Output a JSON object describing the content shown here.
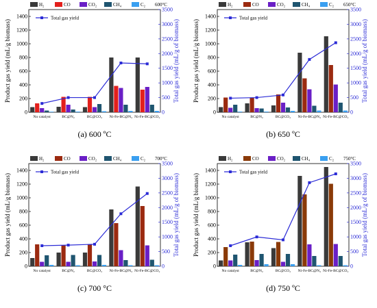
{
  "chart_data": [
    {
      "type": "bar",
      "title": "",
      "temperature_label": "600°C",
      "caption": "(a) 600 ºC",
      "categories": [
        "No catalyst",
        "BC@N₂",
        "BC@CO₂",
        "Ni-Fe-BC@N₂",
        "Ni-Fe-BC@CO₂"
      ],
      "ylabel": "Product gas yield (mL/g biomass)",
      "ylabel_right": "Total gas yield (mL/g of biomass)",
      "ylim": [
        0,
        1500
      ],
      "yticks": [
        0,
        200,
        400,
        600,
        800,
        1000,
        1200,
        1400
      ],
      "ylim_right": [
        0,
        3500
      ],
      "yticks_right": [
        0,
        500,
        1000,
        1500,
        2000,
        2500,
        3000,
        3500
      ],
      "series": [
        {
          "name": "H₂",
          "color": "#3a3a3a",
          "values": [
            75,
            80,
            75,
            800,
            800
          ]
        },
        {
          "name": "CO",
          "color": "#e3201c",
          "values": [
            130,
            225,
            225,
            385,
            330
          ]
        },
        {
          "name": "CO₂",
          "color": "#6a1fc6",
          "values": [
            60,
            110,
            75,
            355,
            370
          ]
        },
        {
          "name": "CH₄",
          "color": "#1f5570",
          "values": [
            25,
            40,
            120,
            110,
            110
          ]
        },
        {
          "name": "C₂",
          "color": "#3a9ff0",
          "values": [
            8,
            10,
            15,
            20,
            20
          ]
        }
      ],
      "line": {
        "name": "Total gas yield",
        "color": "#2b2bd6",
        "values": [
          300,
          500,
          500,
          1680,
          1650
        ]
      }
    },
    {
      "type": "bar",
      "title": "",
      "temperature_label": "650°C",
      "caption": "(b) 650 ºC",
      "categories": [
        "No catalyst",
        "BC@N₂",
        "BC@CO₂",
        "Ni-Fe-BC@N₂",
        "Ni-Fe-BC@CO₂"
      ],
      "ylabel": "Product gas yield (mL/g biomass)",
      "ylabel_right": "Total gas yield (mL/g of biomass)",
      "ylim": [
        0,
        1500
      ],
      "yticks": [
        0,
        200,
        400,
        600,
        800,
        1000,
        1200,
        1400
      ],
      "ylim_right": [
        0,
        3500
      ],
      "yticks_right": [
        0,
        500,
        1000,
        1500,
        2000,
        2500,
        3000,
        3500
      ],
      "series": [
        {
          "name": "H₂",
          "color": "#3a3a3a",
          "values": [
            75,
            130,
            100,
            870,
            1110
          ]
        },
        {
          "name": "CO",
          "color": "#9b2a10",
          "values": [
            215,
            215,
            260,
            495,
            690
          ]
        },
        {
          "name": "CO₂",
          "color": "#6a1fc6",
          "values": [
            65,
            60,
            140,
            335,
            405
          ]
        },
        {
          "name": "CH₄",
          "color": "#1f5570",
          "values": [
            110,
            55,
            70,
            95,
            140
          ]
        },
        {
          "name": "C₂",
          "color": "#3a9ff0",
          "values": [
            10,
            10,
            20,
            25,
            25
          ]
        }
      ],
      "line": {
        "name": "Total gas yield",
        "color": "#2b2bd6",
        "values": [
          480,
          500,
          590,
          1800,
          2370
        ]
      }
    },
    {
      "type": "bar",
      "title": "",
      "temperature_label": "700°C",
      "caption": "(c) 700 °C",
      "categories": [
        "No catalyst",
        "BC@N₂",
        "BC@CO₂",
        "Ni-Fe-BC@N₂",
        "Ni-Fe-BC@CO₂"
      ],
      "ylabel": "Product gas yield (mL/g biomass)",
      "ylabel_right": "Total gas yield (mL/g of biomass)",
      "ylim": [
        0,
        1500
      ],
      "yticks": [
        0,
        200,
        400,
        600,
        800,
        1000,
        1200,
        1400
      ],
      "ylim_right": [
        0,
        3500
      ],
      "yticks_right": [
        0,
        500,
        1000,
        1500,
        2000,
        2500,
        3000,
        3500
      ],
      "series": [
        {
          "name": "H₂",
          "color": "#3a3a3a",
          "values": [
            120,
            200,
            200,
            830,
            1165
          ]
        },
        {
          "name": "CO",
          "color": "#9b2a10",
          "values": [
            320,
            310,
            315,
            630,
            880
          ]
        },
        {
          "name": "CO₂",
          "color": "#6a1fc6",
          "values": [
            65,
            65,
            70,
            235,
            305
          ]
        },
        {
          "name": "CH₄",
          "color": "#1f5570",
          "values": [
            160,
            165,
            165,
            90,
            95
          ]
        },
        {
          "name": "C₂",
          "color": "#3a9ff0",
          "values": [
            20,
            15,
            20,
            15,
            15
          ]
        }
      ],
      "line": {
        "name": "Total gas yield",
        "color": "#2b2bd6",
        "values": [
          700,
          720,
          750,
          1790,
          2480
        ]
      }
    },
    {
      "type": "bar",
      "title": "",
      "temperature_label": "750°C",
      "caption": "(d) 750 ºC",
      "categories": [
        "No catalyst",
        "BC@N₂",
        "BC@CO₂",
        "Ni-Fe-BC@N₂",
        "Ni-Fe-BC@CO₂"
      ],
      "ylabel": "Product gas yield (mL/g biomass)",
      "ylabel_right": "Total gas yield (mL/g of biomass)",
      "ylim": [
        0,
        1500
      ],
      "yticks": [
        0,
        200,
        400,
        600,
        800,
        1000,
        1200,
        1400
      ],
      "ylim_right": [
        0,
        3500
      ],
      "yticks_right": [
        0,
        500,
        1000,
        1500,
        2000,
        2500,
        3000,
        3500
      ],
      "series": [
        {
          "name": "H₂",
          "color": "#3a3a3a",
          "values": [
            85,
            350,
            265,
            1320,
            1450
          ]
        },
        {
          "name": "CO",
          "color": "#8a3a08",
          "values": [
            280,
            360,
            355,
            1050,
            1205
          ]
        },
        {
          "name": "CO₂",
          "color": "#6a1fc6",
          "values": [
            85,
            90,
            65,
            320,
            325
          ]
        },
        {
          "name": "CH₄",
          "color": "#1f5570",
          "values": [
            170,
            180,
            180,
            150,
            150
          ]
        },
        {
          "name": "C₂",
          "color": "#3a9ff0",
          "values": [
            20,
            30,
            30,
            15,
            15
          ]
        }
      ],
      "line": {
        "name": "Total gas yield",
        "color": "#2b2bd6",
        "values": [
          700,
          1000,
          900,
          2850,
          3150
        ]
      }
    }
  ]
}
